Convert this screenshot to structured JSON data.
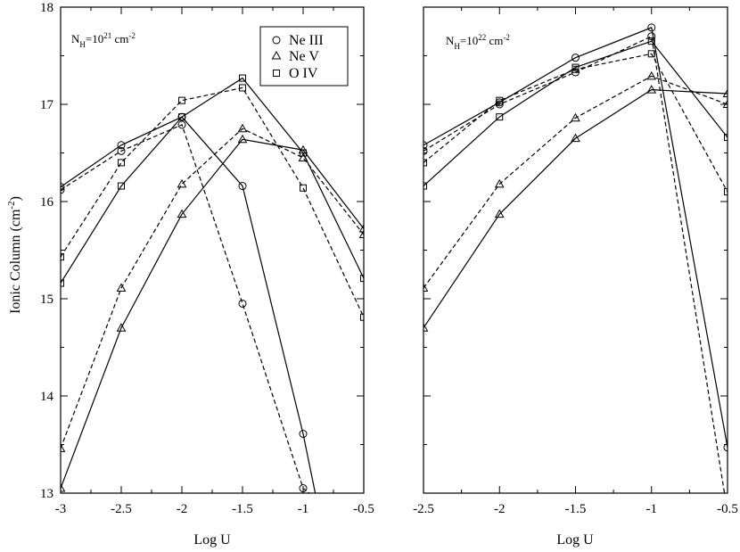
{
  "figure": {
    "ylabel_main": "Ionic Column (cm",
    "ylabel_sup": "-2",
    "ylabel_close": ")"
  },
  "chart_data": [
    {
      "type": "line",
      "panel": "left",
      "xlabel": "Log U",
      "xlim": [
        -3,
        -0.5
      ],
      "ylim": [
        13,
        18
      ],
      "x_ticks": [
        "-3",
        "-2.5",
        "-2",
        "-1.5",
        "-1",
        "-0.5"
      ],
      "y_ticks": [
        "13",
        "14",
        "15",
        "16",
        "17",
        "18"
      ],
      "annotation": {
        "base": "N",
        "sub": "H",
        "mid": "=10",
        "sup1": "21",
        "unit": " cm",
        "sup2": "-2"
      },
      "legend": {
        "placement": "top-right",
        "entries": [
          {
            "label": "Ne III",
            "marker": "circle"
          },
          {
            "label": "Ne V",
            "marker": "triangle"
          },
          {
            "label": "O IV",
            "marker": "square"
          }
        ]
      },
      "series": [
        {
          "ion": "NeIII",
          "marker": "circle",
          "style": "solid",
          "x": [
            -3,
            -2.5,
            -2,
            -1.5,
            -1,
            -0.9
          ],
          "y": [
            16.15,
            16.58,
            16.87,
            16.16,
            13.61,
            13.0
          ],
          "markers": [
            0,
            1,
            2,
            3,
            4
          ]
        },
        {
          "ion": "NeIII",
          "marker": "circle",
          "style": "dashed",
          "x": [
            -3,
            -2.5,
            -2,
            -1.5,
            -1,
            -0.95
          ],
          "y": [
            16.12,
            16.52,
            16.79,
            14.95,
            13.05,
            13.0
          ],
          "markers": [
            0,
            1,
            2,
            3,
            4
          ]
        },
        {
          "ion": "NeV",
          "marker": "triangle",
          "style": "solid",
          "x": [
            -3,
            -2.5,
            -2,
            -1.5,
            -1,
            -0.5
          ],
          "y": [
            13.05,
            14.7,
            15.87,
            16.64,
            16.53,
            15.72
          ],
          "markers": [
            0,
            1,
            2,
            3,
            4,
            5
          ]
        },
        {
          "ion": "NeV",
          "marker": "triangle",
          "style": "dashed",
          "x": [
            -3,
            -2.5,
            -2,
            -1.5,
            -1,
            -0.5
          ],
          "y": [
            13.46,
            15.11,
            16.18,
            16.75,
            16.45,
            15.66
          ],
          "markers": [
            0,
            1,
            2,
            3,
            4,
            5
          ]
        },
        {
          "ion": "OIV",
          "marker": "square",
          "style": "solid",
          "x": [
            -3,
            -2.5,
            -2,
            -1.5,
            -1,
            -0.5
          ],
          "y": [
            15.16,
            16.16,
            16.87,
            17.27,
            16.5,
            15.21
          ],
          "markers": [
            0,
            1,
            2,
            3,
            4,
            5
          ]
        },
        {
          "ion": "OIV",
          "marker": "square",
          "style": "dashed",
          "x": [
            -3,
            -2.5,
            -2,
            -1.5,
            -1,
            -0.5
          ],
          "y": [
            15.43,
            16.4,
            17.04,
            17.17,
            16.14,
            14.81
          ],
          "markers": [
            0,
            1,
            2,
            3,
            4,
            5
          ]
        }
      ]
    },
    {
      "type": "line",
      "panel": "right",
      "xlabel": "Log U",
      "xlim": [
        -2.5,
        -0.5
      ],
      "ylim": [
        13,
        18
      ],
      "x_ticks": [
        "-2.5",
        "-2",
        "-1.5",
        "-1",
        "-0.5"
      ],
      "y_ticks": [],
      "annotation": {
        "base": "N",
        "sub": "H",
        "mid": "=10",
        "sup1": "22",
        "unit": " cm",
        "sup2": "-2"
      },
      "series": [
        {
          "ion": "NeIII",
          "marker": "circle",
          "style": "solid",
          "x": [
            -2.5,
            -2,
            -1.5,
            -1,
            -0.5
          ],
          "y": [
            16.58,
            17.02,
            17.48,
            17.79,
            13.47
          ],
          "markers": [
            0,
            1,
            2,
            3,
            4
          ]
        },
        {
          "ion": "NeIII",
          "marker": "circle",
          "style": "dashed",
          "x": [
            -2.5,
            -2,
            -1.5,
            -1,
            -0.52
          ],
          "y": [
            16.52,
            17.0,
            17.33,
            17.7,
            13.0
          ],
          "markers": [
            0,
            1,
            2,
            3
          ]
        },
        {
          "ion": "NeV",
          "marker": "triangle",
          "style": "solid",
          "x": [
            -2.5,
            -2,
            -1.5,
            -1,
            -0.5
          ],
          "y": [
            14.7,
            15.87,
            16.65,
            17.15,
            17.11
          ],
          "markers": [
            0,
            1,
            2,
            3,
            4
          ]
        },
        {
          "ion": "NeV",
          "marker": "triangle",
          "style": "dashed",
          "x": [
            -2.5,
            -2,
            -1.5,
            -1,
            -0.5
          ],
          "y": [
            15.11,
            16.18,
            16.86,
            17.29,
            17.0
          ],
          "markers": [
            0,
            1,
            2,
            3,
            4
          ]
        },
        {
          "ion": "OIV",
          "marker": "square",
          "style": "solid",
          "x": [
            -2.5,
            -2,
            -1.5,
            -1,
            -0.5
          ],
          "y": [
            16.16,
            16.87,
            17.38,
            17.65,
            16.66
          ],
          "markers": [
            0,
            1,
            2,
            3,
            4
          ]
        },
        {
          "ion": "OIV",
          "marker": "square",
          "style": "dashed",
          "x": [
            -2.5,
            -2,
            -1.5,
            -1,
            -0.5
          ],
          "y": [
            16.4,
            17.04,
            17.36,
            17.52,
            16.1
          ],
          "markers": [
            0,
            1,
            2,
            3,
            4
          ]
        }
      ]
    }
  ]
}
